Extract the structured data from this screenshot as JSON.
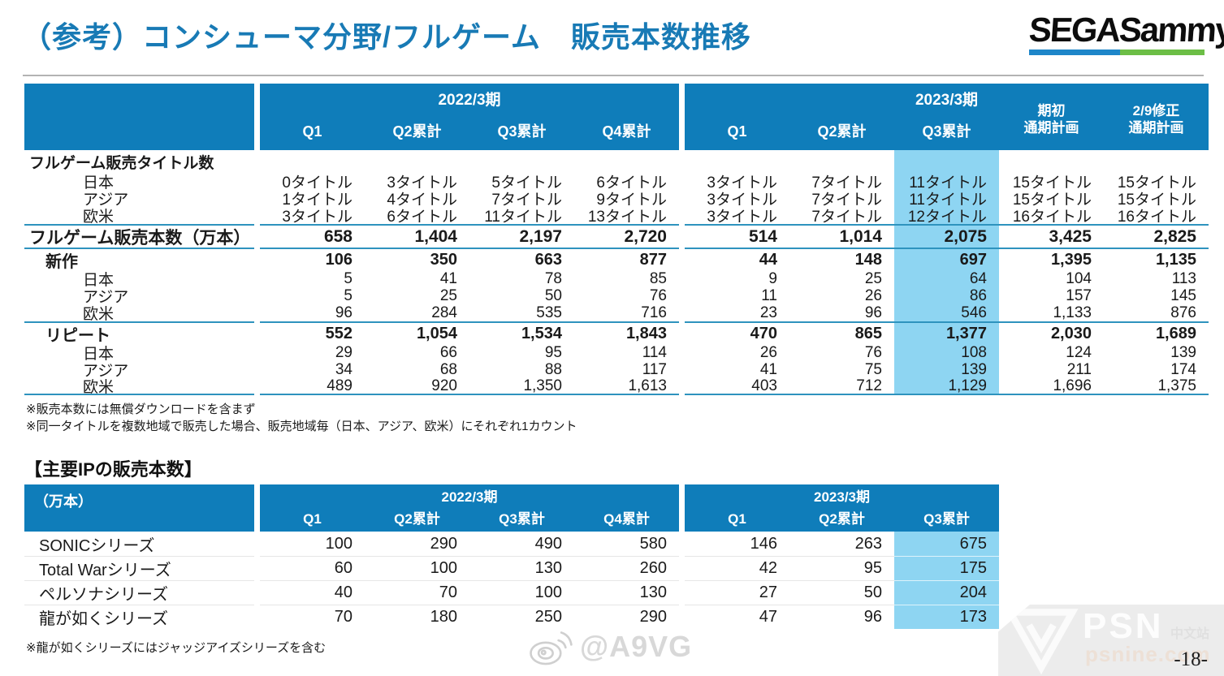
{
  "header": {
    "title": "（参考）コンシューマ分野/フルゲーム　販売本数推移",
    "logo_text": "SEGASammy"
  },
  "colors": {
    "header_blue": "#0F7DBA",
    "highlight_blue": "#8ED5F2",
    "rule_line": "#2E93BE",
    "title_blue": "#187AB5",
    "logo_bar_blue": "#1E86C9",
    "logo_bar_green": "#6CBE46"
  },
  "table1": {
    "groups": [
      {
        "label": "2022/3期",
        "cols": [
          "Q1",
          "Q2累計",
          "Q3累計",
          "Q4累計"
        ]
      },
      {
        "label": "2023/3期",
        "cols": [
          "Q1",
          "Q2累計",
          "Q3累計",
          "期初\n通期計画",
          "2/9修正\n通期計画"
        ]
      }
    ],
    "rows": [
      {
        "label": "フルゲーム販売タイトル数",
        "style": "section",
        "v2022": [
          "",
          "",
          "",
          ""
        ],
        "v2023": [
          "",
          "",
          "",
          "",
          ""
        ]
      },
      {
        "label": "日本",
        "style": "region",
        "v2022": [
          "0タイトル",
          "3タイトル",
          "5タイトル",
          "6タイトル"
        ],
        "v2023": [
          "3タイトル",
          "7タイトル",
          "11タイトル",
          "15タイトル",
          "15タイトル"
        ]
      },
      {
        "label": "アジア",
        "style": "region",
        "v2022": [
          "1タイトル",
          "4タイトル",
          "7タイトル",
          "9タイトル"
        ],
        "v2023": [
          "3タイトル",
          "7タイトル",
          "11タイトル",
          "15タイトル",
          "15タイトル"
        ]
      },
      {
        "label": "欧米",
        "style": "region",
        "v2022": [
          "3タイトル",
          "6タイトル",
          "11タイトル",
          "13タイトル"
        ],
        "v2023": [
          "3タイトル",
          "7タイトル",
          "12タイトル",
          "16タイトル",
          "16タイトル"
        ]
      },
      {
        "label": "フルゲーム販売本数（万本）",
        "style": "total",
        "rule_above": true,
        "v2022": [
          "658",
          "1,404",
          "2,197",
          "2,720"
        ],
        "v2023": [
          "514",
          "1,014",
          "2,075",
          "3,425",
          "2,825"
        ]
      },
      {
        "label": "新作",
        "style": "subtotal",
        "rule_above": true,
        "v2022": [
          "106",
          "350",
          "663",
          "877"
        ],
        "v2023": [
          "44",
          "148",
          "697",
          "1,395",
          "1,135"
        ]
      },
      {
        "label": "日本",
        "style": "region",
        "v2022": [
          "5",
          "41",
          "78",
          "85"
        ],
        "v2023": [
          "9",
          "25",
          "64",
          "104",
          "113"
        ]
      },
      {
        "label": "アジア",
        "style": "region",
        "v2022": [
          "5",
          "25",
          "50",
          "76"
        ],
        "v2023": [
          "11",
          "26",
          "86",
          "157",
          "145"
        ]
      },
      {
        "label": "欧米",
        "style": "region",
        "v2022": [
          "96",
          "284",
          "535",
          "716"
        ],
        "v2023": [
          "23",
          "96",
          "546",
          "1,133",
          "876"
        ]
      },
      {
        "label": "リピート",
        "style": "subtotal",
        "rule_above": true,
        "v2022": [
          "552",
          "1,054",
          "1,534",
          "1,843"
        ],
        "v2023": [
          "470",
          "865",
          "1,377",
          "2,030",
          "1,689"
        ]
      },
      {
        "label": "日本",
        "style": "region",
        "v2022": [
          "29",
          "66",
          "95",
          "114"
        ],
        "v2023": [
          "26",
          "76",
          "108",
          "124",
          "139"
        ]
      },
      {
        "label": "アジア",
        "style": "region",
        "v2022": [
          "34",
          "68",
          "88",
          "117"
        ],
        "v2023": [
          "41",
          "75",
          "139",
          "211",
          "174"
        ]
      },
      {
        "label": "欧米",
        "style": "region",
        "rule_below": true,
        "v2022": [
          "489",
          "920",
          "1,350",
          "1,613"
        ],
        "v2023": [
          "403",
          "712",
          "1,129",
          "1,696",
          "1,375"
        ]
      }
    ],
    "notes": [
      "※販売本数には無償ダウンロードを含まず",
      "※同一タイトルを複数地域で販売した場合、販売地域毎（日本、アジア、欧米）にそれぞれ1カウント"
    ]
  },
  "ip_section": {
    "title": "【主要IPの販売本数】",
    "unit_label": "（万本）",
    "groups": [
      {
        "label": "2022/3期",
        "cols": [
          "Q1",
          "Q2累計",
          "Q3累計",
          "Q4累計"
        ]
      },
      {
        "label": "2023/3期",
        "cols": [
          "Q1",
          "Q2累計",
          "Q3累計"
        ]
      }
    ],
    "rows": [
      {
        "label": "SONICシリーズ",
        "v2022": [
          "100",
          "290",
          "490",
          "580"
        ],
        "v2023": [
          "146",
          "263",
          "675"
        ]
      },
      {
        "label": "Total Warシリーズ",
        "v2022": [
          "60",
          "100",
          "130",
          "260"
        ],
        "v2023": [
          "42",
          "95",
          "175"
        ]
      },
      {
        "label": "ペルソナシリーズ",
        "v2022": [
          "40",
          "70",
          "100",
          "130"
        ],
        "v2023": [
          "27",
          "50",
          "204"
        ]
      },
      {
        "label": "龍が如くシリーズ",
        "v2022": [
          "70",
          "180",
          "250",
          "290"
        ],
        "v2023": [
          "47",
          "96",
          "173"
        ]
      }
    ],
    "note": "※龍が如くシリーズにはジャッジアイズシリーズを含む"
  },
  "watermarks": {
    "weibo_handle": "@A9VG",
    "psn_text": "PSN",
    "psn_sub": "中文站",
    "psn_domain": "psnine.com"
  },
  "footer": {
    "page_number": "-18-"
  }
}
